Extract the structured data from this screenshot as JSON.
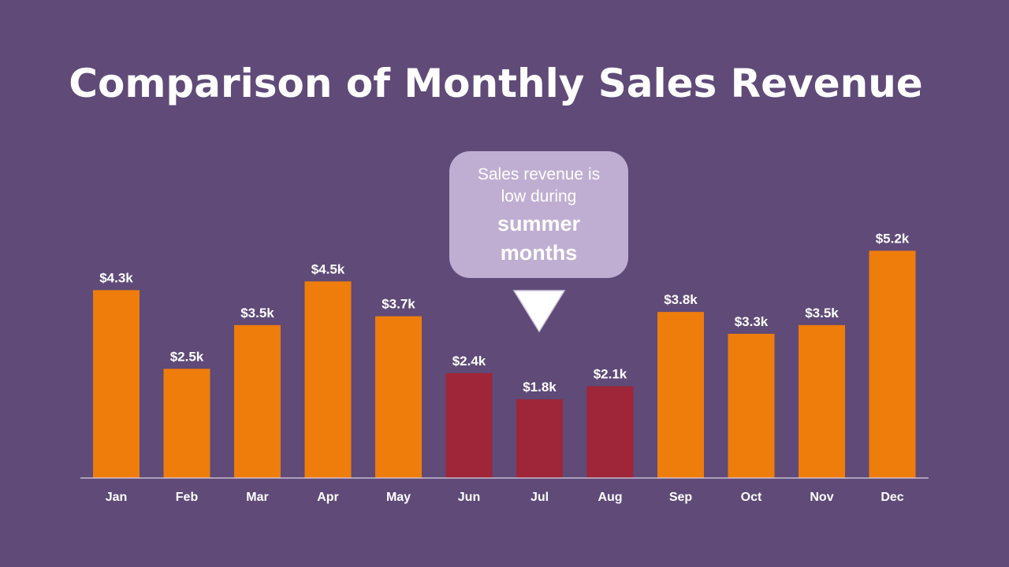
{
  "slide": {
    "background": "#5f4a78"
  },
  "callout": {
    "line1": "Sales revenue is",
    "line2": "low during",
    "line3": "summer",
    "line4": "months",
    "color": "#bfaed2"
  },
  "chart_data": {
    "type": "bar",
    "title": "Comparison of Monthly Sales Revenue",
    "xlabel": "",
    "ylabel": "",
    "grid": false,
    "categories": [
      "Jan",
      "Feb",
      "Mar",
      "Apr",
      "May",
      "Jun",
      "Jul",
      "Aug",
      "Sep",
      "Oct",
      "Nov",
      "Dec"
    ],
    "values": [
      4.3,
      2.5,
      3.5,
      4.5,
      3.7,
      2.4,
      1.8,
      2.1,
      3.8,
      3.3,
      3.5,
      5.2
    ],
    "data_labels": [
      "$4.3k",
      "$2.5k",
      "$3.5k",
      "$4.5k",
      "$3.7k",
      "$2.4k",
      "$1.8k",
      "$2.1k",
      "$3.8k",
      "$3.3k",
      "$3.5k",
      "$5.2k"
    ],
    "bar_colors": [
      "#ee7d0b",
      "#ee7d0b",
      "#ee7d0b",
      "#ee7d0b",
      "#ee7d0b",
      "#9e2638",
      "#9e2638",
      "#9e2638",
      "#ee7d0b",
      "#ee7d0b",
      "#ee7d0b",
      "#ee7d0b"
    ],
    "highlight_color": "#9e2638",
    "default_color": "#ee7d0b",
    "highlighted_categories": [
      "Jun",
      "Jul",
      "Aug"
    ],
    "ylim": [
      0,
      5.2
    ]
  }
}
